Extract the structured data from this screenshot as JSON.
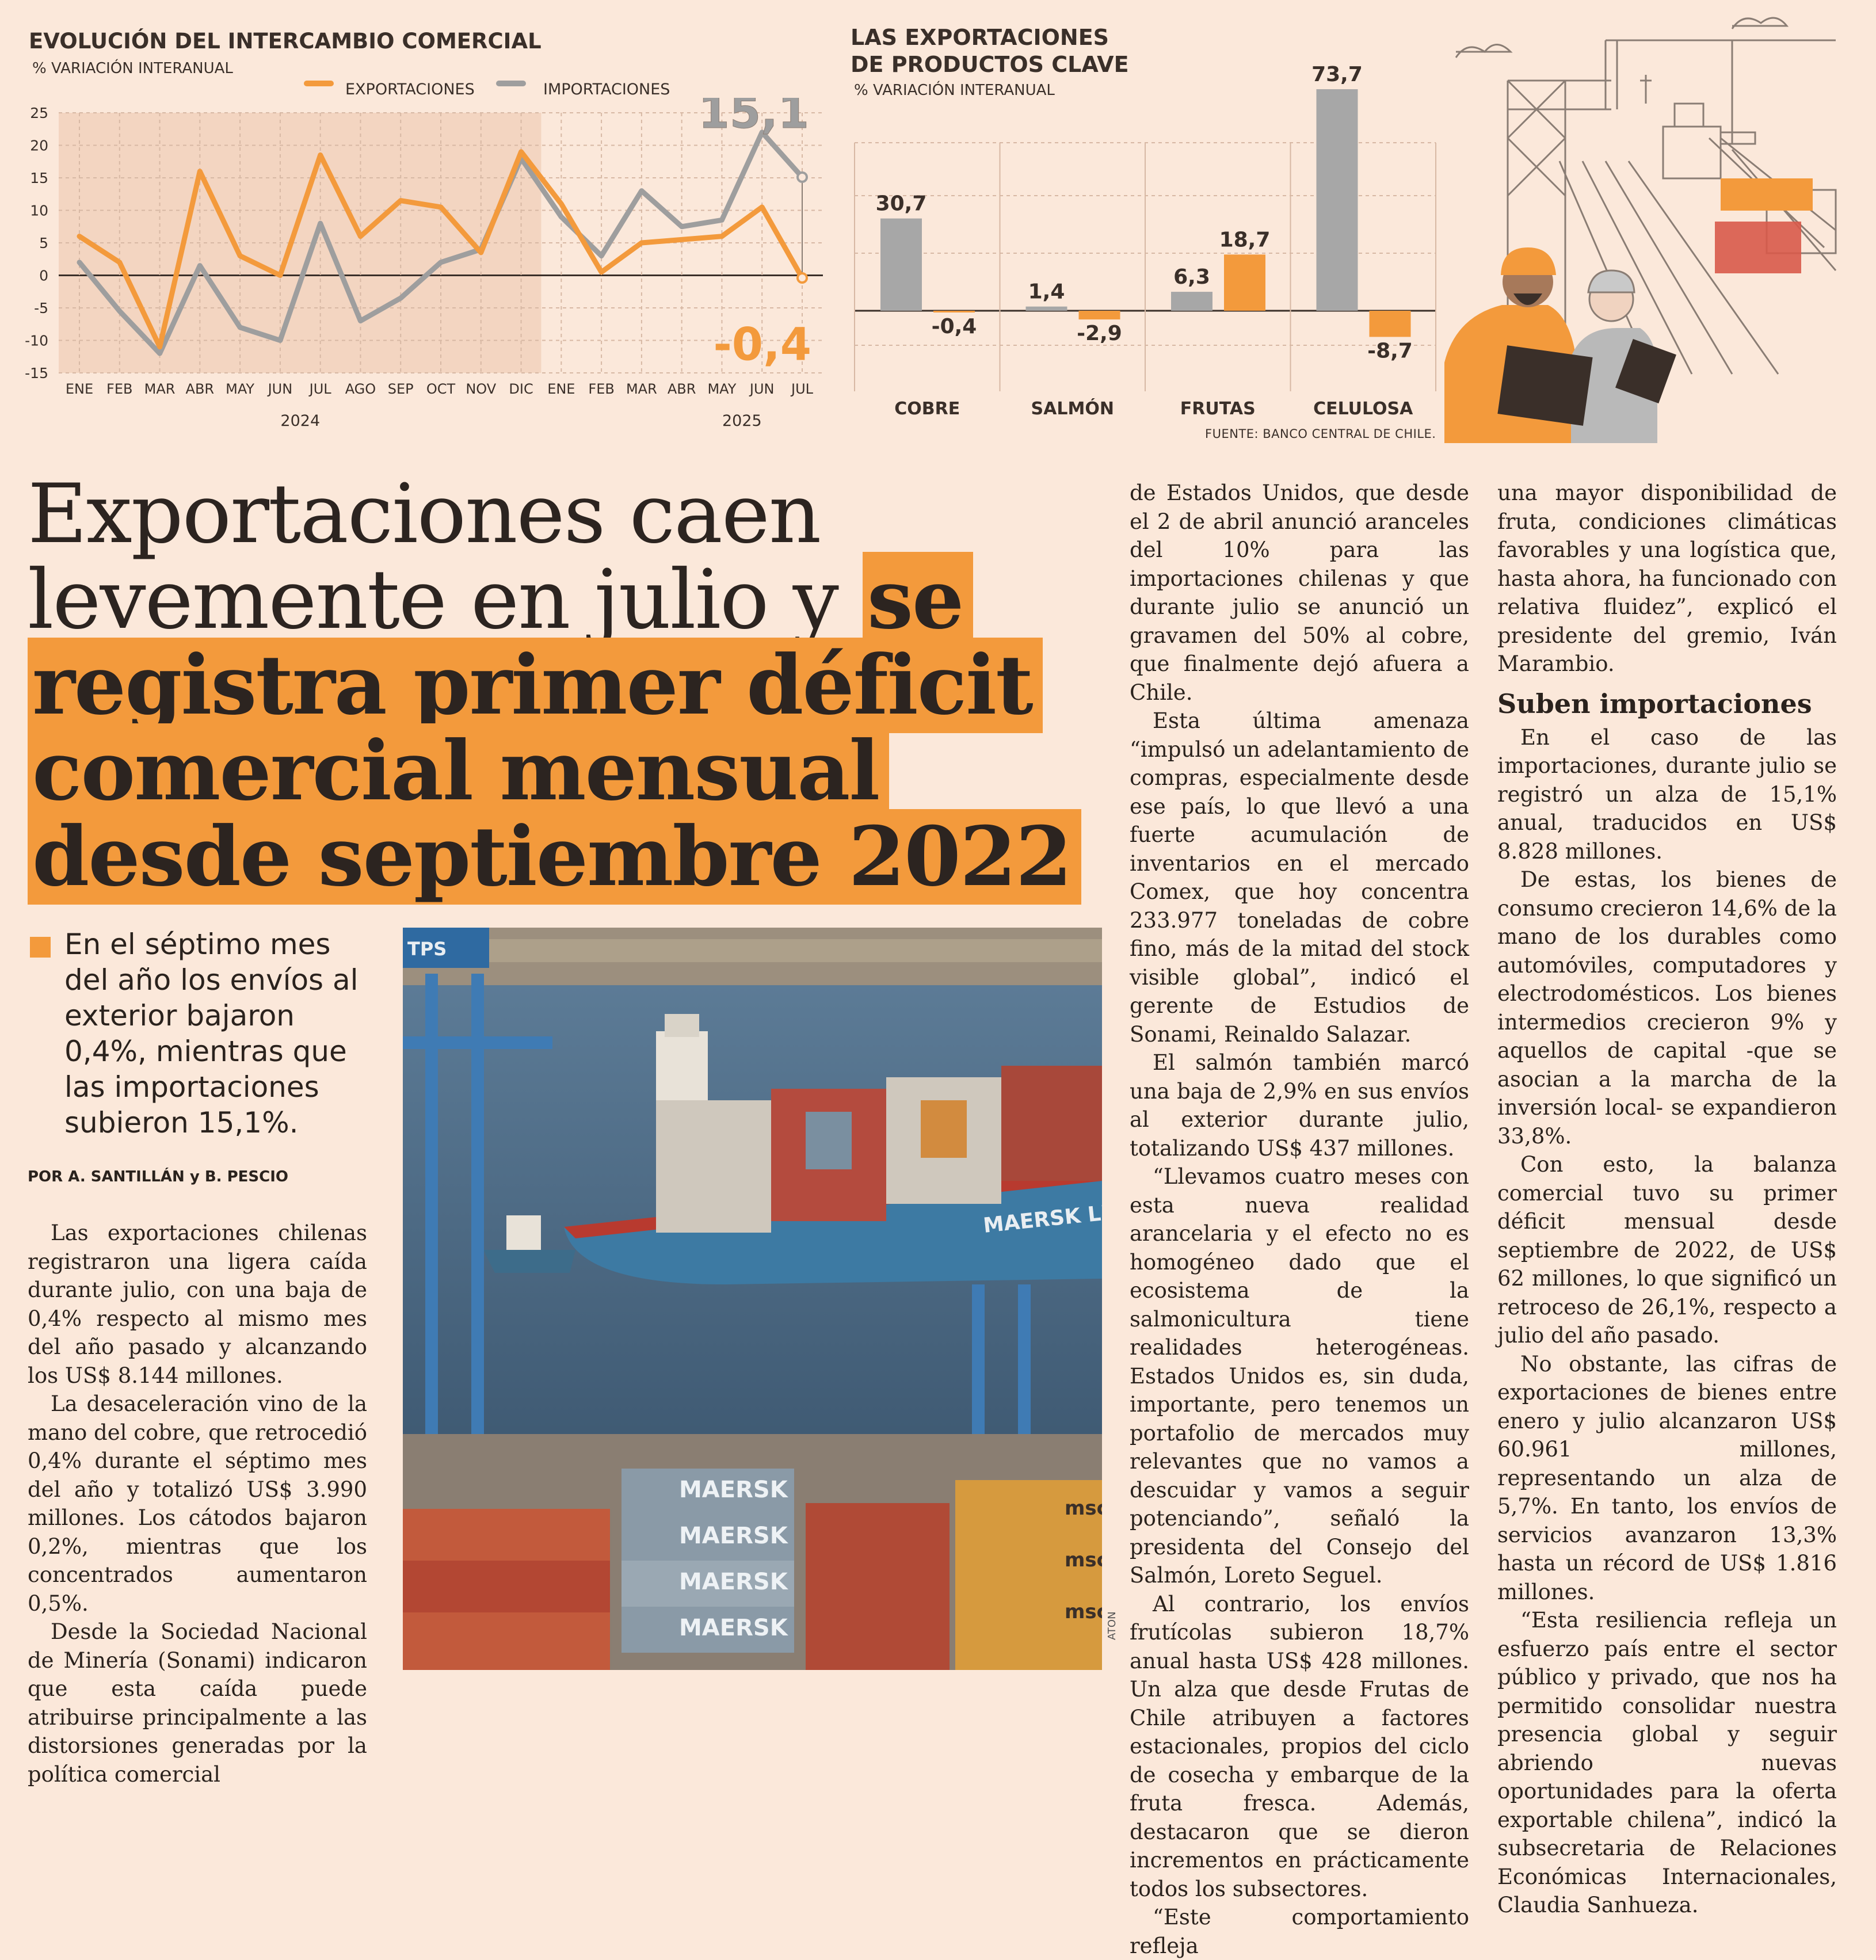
{
  "chart1": {
    "title": "EVOLUCIÓN DEL INTERCAMBIO COMERCIAL",
    "subtitle": "% VARIACIÓN INTERANUAL",
    "legend": [
      {
        "label": "EXPORTACIONES",
        "color": "#f39a3c"
      },
      {
        "label": "IMPORTACIONES",
        "color": "#9e9e9e"
      }
    ],
    "callout_imports": "15,1",
    "callout_exports": "-0,4",
    "year_labels": [
      "2024",
      "2025"
    ]
  },
  "chart2": {
    "title_line1": "LAS EXPORTACIONES",
    "title_line2": "DE PRODUCTOS CLAVE",
    "subtitle": "% VARIACIÓN INTERANUAL",
    "source": "FUENTE: BANCO CENTRAL DE CHILE."
  },
  "chart_data": [
    {
      "type": "line",
      "title": "EVOLUCIÓN DEL INTERCAMBIO COMERCIAL",
      "subtitle": "% VARIACIÓN INTERANUAL",
      "x": [
        "ENE",
        "FEB",
        "MAR",
        "ABR",
        "MAY",
        "JUN",
        "JUL",
        "AGO",
        "SEP",
        "OCT",
        "NOV",
        "DIC",
        "ENE",
        "FEB",
        "MAR",
        "ABR",
        "MAY",
        "JUN",
        "JUL"
      ],
      "ylim": [
        -15,
        25
      ],
      "yticks": [
        25,
        20,
        15,
        10,
        5,
        0,
        -5,
        -10,
        -15
      ],
      "series": [
        {
          "name": "EXPORTACIONES",
          "color": "#f39a3c",
          "values": [
            6,
            2,
            -11,
            16,
            3,
            0,
            18.5,
            6,
            11.5,
            10.5,
            3.5,
            19,
            11,
            0.5,
            5,
            5.5,
            6,
            10.5,
            -0.4
          ]
        },
        {
          "name": "IMPORTACIONES",
          "color": "#9e9e9e",
          "values": [
            2,
            -5.5,
            -12,
            1.5,
            -8,
            -10,
            8,
            -7,
            -3.5,
            2,
            4,
            18,
            9,
            3,
            13,
            7.5,
            8.5,
            22,
            15.1
          ]
        }
      ],
      "grid": true,
      "legend": "top"
    },
    {
      "type": "bar",
      "title": "LAS EXPORTACIONES DE PRODUCTOS CLAVE",
      "subtitle": "% VARIACIÓN INTERANUAL",
      "categories": [
        "COBRE",
        "SALMÓN",
        "FRUTAS",
        "CELULOSA"
      ],
      "series": [
        {
          "color": "#a7a7a7",
          "values": [
            30.7,
            1.4,
            6.3,
            73.7
          ],
          "labels": [
            "30,7",
            "1,4",
            "6,3",
            "73,7"
          ]
        },
        {
          "color": "#f39a3c",
          "values": [
            -0.4,
            -2.9,
            18.7,
            -8.7
          ],
          "labels": [
            "-0,4",
            "-2,9",
            "18,7",
            "-8,7"
          ]
        }
      ],
      "ylim": [
        -20,
        75
      ],
      "grid": true
    }
  ],
  "article": {
    "headline_light": "Exportaciones caen levemente en julio y ",
    "headline_bold": "se registra primer déficit comercial mensual desde septiembre 2022",
    "lead": "En el séptimo mes del año los envíos al exterior bajaron 0,4%, mientras que las importaciones subieron 15,1%.",
    "byline": "POR A. SANTILLÁN y B. PESCIO",
    "photo_credit": "ATON",
    "col1": [
      "Las exportaciones chilenas registraron una ligera caída durante julio, con una baja de 0,4% respecto al mismo mes del año pasado y alcanzando los US$ 8.144 millones.",
      "La desaceleración vino de la mano del cobre, que retrocedió 0,4% durante el séptimo mes del año y totalizó US$ 3.990 millones. Los cátodos bajaron 0,2%, mientras que los concentrados aumentaron 0,5%.",
      "Desde la Sociedad Nacional de Minería (Sonami) indicaron que esta caída puede atribuirse principalmente a las distorsiones generadas por la política comercial"
    ],
    "col2": [
      "de Estados Unidos, que desde el 2 de abril anunció aranceles del 10% para las importaciones chilenas y que durante julio se anunció un gravamen del 50% al cobre, que finalmente dejó afuera a Chile.",
      "Esta última amenaza “impulsó un adelantamiento de compras, especialmente desde ese país, lo que llevó a una fuerte acumulación de inventarios en el mercado Comex, que hoy concentra 233.977 toneladas de cobre fino, más de la mitad del stock visible global”, indicó el gerente de Estudios de Sonami, Reinaldo Salazar.",
      "El salmón también marcó una baja de 2,9% en sus envíos al exterior durante julio, totalizando US$ 437 millones.",
      "“Llevamos cuatro meses con esta nueva realidad arancelaria y el efecto no es homogéneo dado que el ecosistema de la salmonicultura tiene realidades heterogéneas. Estados Unidos es, sin duda, importante, pero tenemos un portafolio de mercados muy relevantes que no vamos a descuidar y vamos a seguir potenciando”, señaló la presidenta del Consejo del Salmón, Loreto Seguel.",
      "Al contrario, los envíos frutícolas subieron 18,7% anual hasta US$ 428 millones. Un alza que desde Frutas de Chile atribuyen a factores estacionales, propios del ciclo de cosecha y embarque de la fruta fresca. Además, destacaron que se dieron incrementos en prácticamente todos los subsectores.",
      "“Este comportamiento refleja"
    ],
    "col3_intro": "una mayor disponibilidad de fruta, condiciones climáticas favorables y una logística que, hasta ahora, ha funcionado con relativa fluidez”, explicó el presidente del gremio, Iván Marambio.",
    "col3_heading": "Suben importaciones",
    "col3": [
      "En el caso de las importaciones, durante julio se registró un alza de 15,1% anual, traducidos en US$ 8.828 millones.",
      "De estas, los bienes de consumo crecieron 14,6% de la mano de los durables como automóviles, computadores y electrodomésticos. Los bienes intermedios crecieron 9% y aquellos de capital -que se asocian a la marcha de la inversión local- se expandieron 33,8%.",
      "Con esto, la balanza comercial tuvo su primer déficit mensual desde septiembre de 2022, de US$ 62 millones, lo que significó un retroceso de 26,1%, respecto a julio del año pasado.",
      "No obstante, las cifras de exportaciones de bienes entre enero y julio alcanzaron US$ 60.961 millones, representando un alza de 5,7%. En tanto, los envíos de servicios avanzaron 13,3% hasta un récord de US$ 1.816 millones.",
      "“Esta resiliencia refleja un esfuerzo país entre el sector público y privado, que nos ha permitido consolidar nuestra presencia global y seguir abriendo nuevas oportunidades para la oferta exportable chilena”, indicó la subsecretaria de Relaciones Económicas Internacionales, Claudia Sanhueza."
    ]
  },
  "photo_text": {
    "ship_brand": "MAERSK LINE",
    "container_brand": "MAERSK",
    "container_brand2": "msc",
    "sign": "TPS"
  }
}
